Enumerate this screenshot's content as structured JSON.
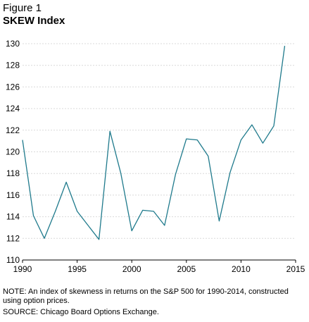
{
  "figure_label": "Figure 1",
  "note": "NOTE: An index of skewness in returns on the S&P 500 for 1990-2014, constructed using option prices.",
  "source": "SOURCE: Chicago Board Options Exchange.",
  "chart_data": {
    "type": "line",
    "title": "SKEW Index",
    "xlabel": "",
    "ylabel": "",
    "x": [
      1990,
      1991,
      1992,
      1993,
      1994,
      1995,
      1996,
      1997,
      1998,
      1999,
      2000,
      2001,
      2002,
      2003,
      2004,
      2005,
      2006,
      2007,
      2008,
      2009,
      2010,
      2011,
      2012,
      2013,
      2014
    ],
    "series": [
      {
        "color": "#1f7a8c",
        "values": [
          121.1,
          114.1,
          112.0,
          114.5,
          117.2,
          114.5,
          113.2,
          111.9,
          121.9,
          118.0,
          112.7,
          114.6,
          114.5,
          113.2,
          117.9,
          121.2,
          121.1,
          119.6,
          113.6,
          118.1,
          121.1,
          122.5,
          120.8,
          122.4,
          129.8
        ]
      }
    ],
    "xlim": [
      1990,
      2015
    ],
    "ylim": [
      110,
      130
    ],
    "xticks": [
      1990,
      1995,
      2000,
      2005,
      2010,
      2015
    ],
    "yticks": [
      110,
      112,
      114,
      116,
      118,
      120,
      122,
      124,
      126,
      128,
      130
    ],
    "grid": "horizontal-dotted"
  }
}
